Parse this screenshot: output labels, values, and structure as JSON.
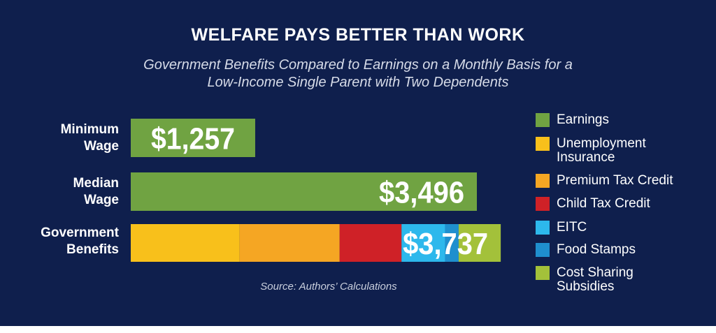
{
  "header": {
    "title": "WELFARE PAYS BETTER THAN WORK",
    "subtitle_line1": "Government Benefits Compared to Earnings on a Monthly Basis for a",
    "subtitle_line2": "Low-Income Single Parent with Two Dependents"
  },
  "source": "Source: Authors’ Calculations",
  "chart_data": {
    "type": "bar",
    "orientation": "horizontal",
    "stacked": true,
    "categories": [
      "Minimum Wage",
      "Median Wage",
      "Government Benefits"
    ],
    "category_label_lines": [
      [
        "Minimum",
        "Wage"
      ],
      [
        "Median",
        "Wage"
      ],
      [
        "Government",
        "Benefits"
      ]
    ],
    "value_labels": [
      "$1,257",
      "$3,496",
      "$3,737"
    ],
    "totals": [
      1257,
      3496,
      3737
    ],
    "series": [
      {
        "name": "Earnings",
        "color": "#70a342",
        "values": [
          1257,
          3496,
          0
        ]
      },
      {
        "name": "Unemployment Insurance",
        "color": "#f8c01b",
        "values": [
          0,
          0,
          1100
        ]
      },
      {
        "name": "Premium Tax Credit",
        "color": "#f5a623",
        "values": [
          0,
          0,
          1010
        ]
      },
      {
        "name": "Child Tax Credit",
        "color": "#cf2127",
        "values": [
          0,
          0,
          625
        ]
      },
      {
        "name": "EITC",
        "color": "#2db8ec",
        "values": [
          0,
          0,
          440
        ]
      },
      {
        "name": "Food Stamps",
        "color": "#1f8fce",
        "values": [
          0,
          0,
          137
        ]
      },
      {
        "name": "Cost Sharing Subsidies",
        "color": "#a3c13a",
        "values": [
          0,
          0,
          425
        ]
      }
    ],
    "legend_position": "right",
    "grid": false
  },
  "legend": [
    {
      "label_lines": [
        "Earnings"
      ],
      "color": "#70a342"
    },
    {
      "label_lines": [
        "Unemployment",
        "Insurance"
      ],
      "color": "#f8c01b"
    },
    {
      "label_lines": [
        "Premium Tax Credit"
      ],
      "color": "#f5a623"
    },
    {
      "label_lines": [
        "Child Tax Credit"
      ],
      "color": "#cf2127"
    },
    {
      "label_lines": [
        "EITC"
      ],
      "color": "#2db8ec"
    },
    {
      "label_lines": [
        "Food Stamps"
      ],
      "color": "#1f8fce"
    },
    {
      "label_lines": [
        "Cost Sharing",
        "Subsidies"
      ],
      "color": "#a3c13a"
    }
  ]
}
